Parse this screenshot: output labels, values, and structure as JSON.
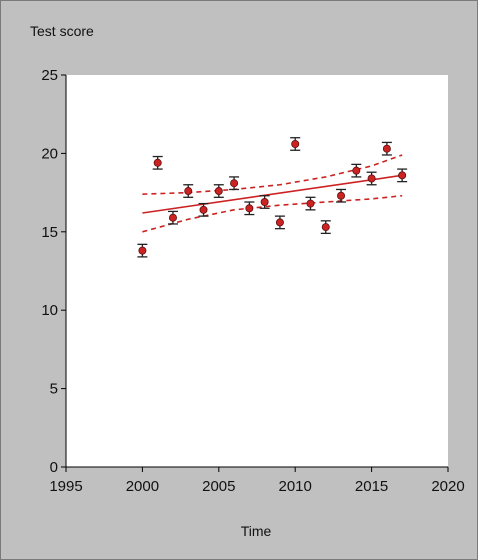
{
  "chart_data": {
    "type": "scatter",
    "title": "",
    "ylabel": "Test score",
    "xlabel": "Time",
    "xlim": [
      1995,
      2020
    ],
    "ylim": [
      0,
      25
    ],
    "xticks": [
      1995,
      2000,
      2005,
      2010,
      2015,
      2020
    ],
    "yticks": [
      0,
      5,
      10,
      15,
      20,
      25
    ],
    "grid": false,
    "legend": "none",
    "colors": {
      "background": "#c0c0c0",
      "plot_area": "#ffffff",
      "points": "#cc2222",
      "trend": "#cc2222",
      "error_bars": "#222222"
    },
    "points": [
      {
        "x": 2000,
        "y": 13.8,
        "err": 0.4
      },
      {
        "x": 2001,
        "y": 19.4,
        "err": 0.4
      },
      {
        "x": 2002,
        "y": 15.9,
        "err": 0.4
      },
      {
        "x": 2003,
        "y": 17.6,
        "err": 0.4
      },
      {
        "x": 2004,
        "y": 16.4,
        "err": 0.4
      },
      {
        "x": 2005,
        "y": 17.6,
        "err": 0.4
      },
      {
        "x": 2006,
        "y": 18.1,
        "err": 0.4
      },
      {
        "x": 2007,
        "y": 16.5,
        "err": 0.4
      },
      {
        "x": 2008,
        "y": 16.9,
        "err": 0.4
      },
      {
        "x": 2009,
        "y": 15.6,
        "err": 0.4
      },
      {
        "x": 2010,
        "y": 20.6,
        "err": 0.4
      },
      {
        "x": 2011,
        "y": 16.8,
        "err": 0.4
      },
      {
        "x": 2012,
        "y": 15.3,
        "err": 0.4
      },
      {
        "x": 2013,
        "y": 17.3,
        "err": 0.4
      },
      {
        "x": 2014,
        "y": 18.9,
        "err": 0.4
      },
      {
        "x": 2015,
        "y": 18.4,
        "err": 0.4
      },
      {
        "x": 2016,
        "y": 20.3,
        "err": 0.4
      },
      {
        "x": 2017,
        "y": 18.6,
        "err": 0.4
      }
    ],
    "trend_line": {
      "x": [
        2000,
        2017
      ],
      "y": [
        16.2,
        18.6
      ]
    },
    "confidence_upper": {
      "x": [
        2000,
        2003,
        2006,
        2009,
        2012,
        2015,
        2017
      ],
      "y": [
        17.4,
        17.5,
        17.7,
        18.0,
        18.5,
        19.2,
        19.9
      ]
    },
    "confidence_lower": {
      "x": [
        2000,
        2003,
        2006,
        2009,
        2012,
        2015,
        2017
      ],
      "y": [
        15.0,
        15.8,
        16.4,
        16.7,
        16.9,
        17.1,
        17.3
      ]
    }
  }
}
